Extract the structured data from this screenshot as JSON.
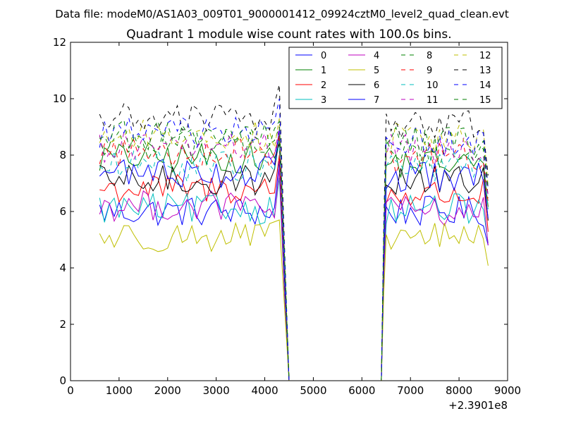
{
  "suptitle": "Data file: modeM0/AS1A03_009T01_9000001412_09924cztM0_level2_quad_clean.evt",
  "chart_data": {
    "type": "line",
    "title": "Quadrant 1 module wise count rates with 100.0s bins.",
    "xlabel": "",
    "ylabel": "",
    "xlim": [
      0,
      9000
    ],
    "ylim": [
      0,
      12
    ],
    "x_offset_label": "+2.3901e8",
    "xticks": [
      0,
      1000,
      2000,
      3000,
      4000,
      5000,
      6000,
      7000,
      8000,
      9000
    ],
    "xtick_labels": [
      "0",
      "1000",
      "2000",
      "3000",
      "4000",
      "5000",
      "6000",
      "7000",
      "8000",
      "9000"
    ],
    "yticks": [
      0,
      2,
      4,
      6,
      8,
      10,
      12
    ],
    "ytick_labels": [
      "0",
      "2",
      "4",
      "6",
      "8",
      "10",
      "12"
    ],
    "grid": false,
    "legend_position": "top-right",
    "legend_columns": 4,
    "segments": [
      {
        "x_start": 600,
        "x_end": 4300,
        "step": 100
      },
      {
        "x_start": 6400,
        "x_end": 8600,
        "step": 100
      }
    ],
    "gap_zero_range": [
      4500,
      6400
    ],
    "series": [
      {
        "name": "0",
        "color": "#0000ff",
        "dash": "solid",
        "level1": 6.0,
        "level2": 6.0,
        "peak": 7.8
      },
      {
        "name": "1",
        "color": "#008000",
        "dash": "solid",
        "level1": 7.9,
        "level2": 7.7,
        "peak": 8.4
      },
      {
        "name": "2",
        "color": "#ff0000",
        "dash": "solid",
        "level1": 6.8,
        "level2": 6.6,
        "peak": 8.0
      },
      {
        "name": "3",
        "color": "#00bfbf",
        "dash": "solid",
        "level1": 6.1,
        "level2": 6.1,
        "peak": 7.2
      },
      {
        "name": "4",
        "color": "#bf00bf",
        "dash": "solid",
        "level1": 6.2,
        "level2": 6.0,
        "peak": 7.5
      },
      {
        "name": "5",
        "color": "#bfbf00",
        "dash": "solid",
        "level1": 5.1,
        "level2": 5.1,
        "peak": 5.7
      },
      {
        "name": "6",
        "color": "#000000",
        "dash": "solid",
        "level1": 7.1,
        "level2": 7.1,
        "peak": 8.6
      },
      {
        "name": "7",
        "color": "#0000ff",
        "dash": "solid",
        "level1": 7.4,
        "level2": 7.2,
        "peak": 8.9
      },
      {
        "name": "8",
        "color": "#008000",
        "dash": "dashed",
        "level1": 8.4,
        "level2": 8.1,
        "peak": 9.0
      },
      {
        "name": "9",
        "color": "#ff0000",
        "dash": "dashed",
        "level1": 8.1,
        "level2": 7.9,
        "peak": 8.7
      },
      {
        "name": "10",
        "color": "#00bfbf",
        "dash": "dashed",
        "level1": 7.6,
        "level2": 7.6,
        "peak": 8.5
      },
      {
        "name": "11",
        "color": "#bf00bf",
        "dash": "dashed",
        "level1": 8.3,
        "level2": 8.2,
        "peak": 9.0
      },
      {
        "name": "12",
        "color": "#bfbf00",
        "dash": "dashed",
        "level1": 8.7,
        "level2": 8.6,
        "peak": 9.3
      },
      {
        "name": "13",
        "color": "#000000",
        "dash": "dashed",
        "level1": 9.3,
        "level2": 9.1,
        "peak": 10.5
      },
      {
        "name": "14",
        "color": "#0000ff",
        "dash": "dashed",
        "level1": 8.8,
        "level2": 8.5,
        "peak": 10.0
      },
      {
        "name": "15",
        "color": "#008000",
        "dash": "dashed",
        "level1": 8.7,
        "level2": 8.5,
        "peak": 9.2
      }
    ]
  }
}
